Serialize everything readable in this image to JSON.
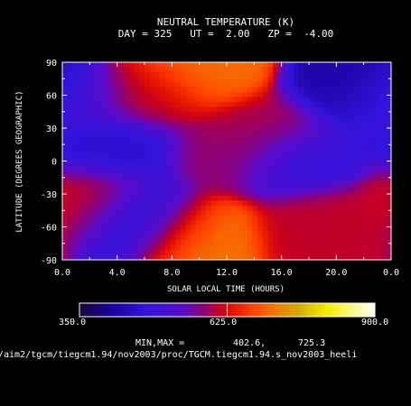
{
  "chart_data": {
    "type": "heatmap",
    "title": "NEUTRAL TEMPERATURE (K)",
    "subtitle": "DAY = 325   UT =  2.00   ZP =  -4.00",
    "xlabel": "SOLAR LOCAL TIME (HOURS)",
    "ylabel": "LATITUDE (DEGREES GEOGRAPHIC)",
    "x_ticks": [
      "0.0",
      "4.0",
      "8.0",
      "12.0",
      "16.0",
      "20.0",
      "0.0"
    ],
    "y_ticks": [
      "90",
      "60",
      "30",
      "0",
      "-30",
      "-60",
      "-90"
    ],
    "xlim": [
      0,
      24
    ],
    "ylim": [
      -90,
      90
    ],
    "colorbar": {
      "min_label": "350.0",
      "mid_label": "625.0",
      "max_label": "900.0",
      "range": [
        350,
        900
      ]
    },
    "min_max_label": "MIN,MAX =",
    "min_value": "402.6,",
    "max_value": "725.3",
    "features": [
      {
        "lt": 10.0,
        "lat": 80,
        "value": 705
      },
      {
        "lt": 9.5,
        "lat": -63,
        "value": 710
      },
      {
        "lt": 6.0,
        "lat": -50,
        "value": 420
      },
      {
        "lt": 21.5,
        "lat": 68,
        "value": 420
      },
      {
        "lt": 2.5,
        "lat": -35,
        "value": 620
      },
      {
        "lt": 12.0,
        "lat": 5,
        "value": 585
      },
      {
        "lt": 14.5,
        "lat": 25,
        "value": 600
      },
      {
        "lt": 19.0,
        "lat": -55,
        "value": 610
      },
      {
        "lt": 4.0,
        "lat": 10,
        "value": 455
      },
      {
        "lt": 17.0,
        "lat": 0,
        "value": 470
      },
      {
        "lt": 0.5,
        "lat": 55,
        "value": 500
      },
      {
        "lt": 6.5,
        "lat": 60,
        "value": 610
      }
    ]
  },
  "footer": {
    "file_path": "/aim2/tgcm/tiegcm1.94/nov2003/proc/TGCM.tiegcm1.94.s_nov2003_heeli"
  }
}
